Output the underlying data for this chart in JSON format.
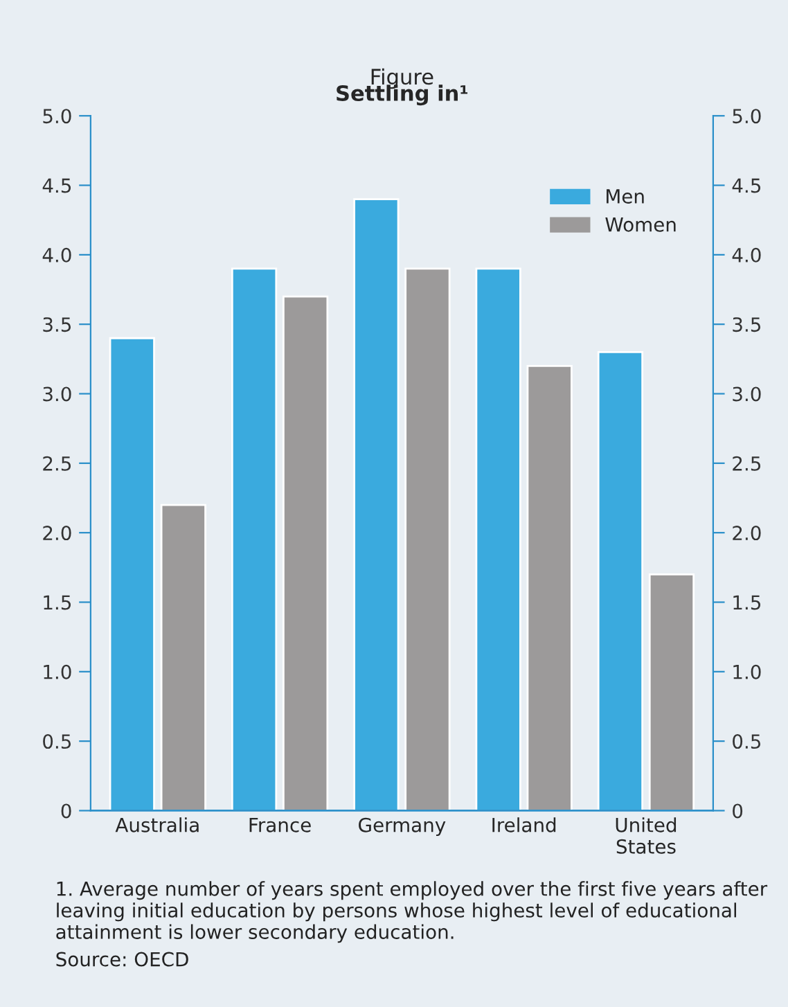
{
  "chart_data": {
    "type": "bar",
    "title": "Figure",
    "subtitle": "Settling in¹",
    "categories": [
      "Australia",
      "France",
      "Germany",
      "Ireland",
      "United\nStates"
    ],
    "series": [
      {
        "name": "Men",
        "color": "#3aaade",
        "values": [
          3.4,
          3.9,
          4.4,
          3.9,
          3.3
        ]
      },
      {
        "name": "Women",
        "color": "#9c9a9a",
        "values": [
          2.2,
          3.7,
          3.9,
          3.2,
          1.7
        ]
      }
    ],
    "ylim": [
      0,
      5
    ],
    "yticks": [
      {
        "value": 0,
        "label": "0"
      },
      0.5,
      {
        "value": 1,
        "label": "1.0"
      },
      1.5,
      {
        "value": 2,
        "label": "2.0"
      },
      2.5,
      {
        "value": 3,
        "label": "3.0"
      },
      3.5,
      {
        "value": 4,
        "label": "4.0"
      },
      4.5,
      {
        "value": 5,
        "label": "5.0"
      }
    ],
    "y2lim": [
      0,
      5
    ],
    "y2ticks": [
      {
        "value": 0,
        "label": "0"
      },
      0.5,
      {
        "value": 1,
        "label": "1.0"
      },
      1.5,
      {
        "value": 2,
        "label": "2.0"
      },
      2.5,
      {
        "value": 3,
        "label": "3.0"
      },
      3.5,
      {
        "value": 4,
        "label": "4.0"
      },
      4.5,
      {
        "value": 5,
        "label": "5.0"
      }
    ],
    "grid": false,
    "legend": "top right",
    "annotations": [
      "1. Average number of years spent employed over the first five years after leaving initial education by persons whose highest level of educational attainment is lower secondary education.",
      "Source: OECD"
    ]
  }
}
